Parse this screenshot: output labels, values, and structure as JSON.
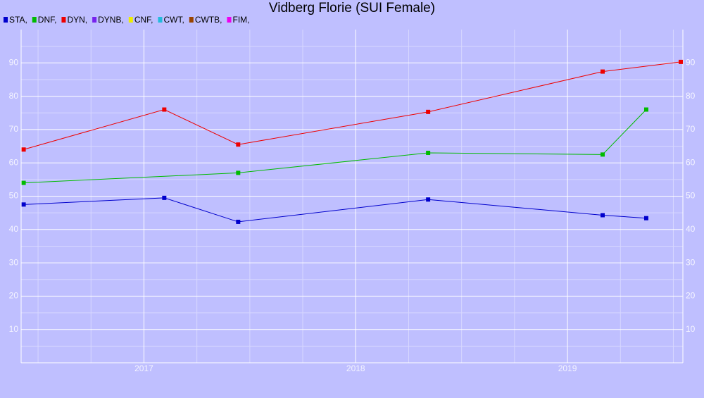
{
  "chart_data": {
    "type": "line",
    "title": "Vidberg Florie (SUI Female)",
    "xlim": [
      2016.42,
      2019.545
    ],
    "xticks": [
      2017,
      2018,
      2019
    ],
    "x_minor_ticks": [
      2016.5,
      2016.75,
      2017.25,
      2017.5,
      2017.75,
      2018.25,
      2018.5,
      2018.75,
      2019.25,
      2019.5
    ],
    "ylim": [
      0,
      100
    ],
    "yticks": [
      10,
      20,
      30,
      40,
      50,
      60,
      70,
      80,
      90
    ],
    "y_minor_ticks": [
      5,
      15,
      25,
      35,
      45,
      55,
      65,
      75,
      85,
      95
    ],
    "grid": true,
    "series": [
      {
        "name": "STA,",
        "color": "#0000cc",
        "x": [
          2016.432,
          2017.096,
          2017.445,
          2018.342,
          2019.166,
          2019.372
        ],
        "values": [
          47.5,
          49.5,
          42.3,
          49,
          44.3,
          43.4
        ]
      },
      {
        "name": "DNF,",
        "color": "#00bb00",
        "x": [
          2016.432,
          2017.445,
          2018.342,
          2019.166,
          2019.372
        ],
        "values": [
          54,
          57,
          63,
          62.5,
          76
        ]
      },
      {
        "name": "DYN,",
        "color": "#ee0000",
        "x": [
          2016.432,
          2017.096,
          2017.445,
          2018.342,
          2019.166,
          2019.535
        ],
        "values": [
          64,
          76,
          65.5,
          75.3,
          87.4,
          90.3
        ]
      },
      {
        "name": "DYNB,",
        "color": "#7722ee",
        "x": [],
        "values": []
      },
      {
        "name": "CNF,",
        "color": "#eeee00",
        "x": [],
        "values": []
      },
      {
        "name": "CWT,",
        "color": "#22bbdd",
        "x": [],
        "values": []
      },
      {
        "name": "CWTB,",
        "color": "#994400",
        "x": [],
        "values": []
      },
      {
        "name": "FIM,",
        "color": "#ee00ee",
        "x": [],
        "values": []
      }
    ]
  }
}
